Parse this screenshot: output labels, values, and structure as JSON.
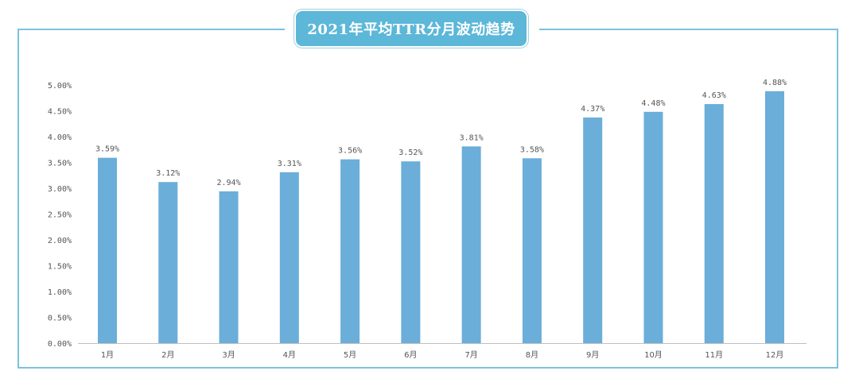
{
  "title": "2021年平均TTR分月波动趋势",
  "colors": {
    "bar": "#6aaed9",
    "frame": "#7cc2dc",
    "title_bg": "#5cb7d8",
    "axis": "#bfbfbf",
    "text": "#555555"
  },
  "chart_data": {
    "type": "bar",
    "title": "2021年平均TTR分月波动趋势",
    "xlabel": "",
    "ylabel": "",
    "categories": [
      "1月",
      "2月",
      "3月",
      "4月",
      "5月",
      "6月",
      "7月",
      "8月",
      "9月",
      "10月",
      "11月",
      "12月"
    ],
    "values": [
      3.59,
      3.12,
      2.94,
      3.31,
      3.56,
      3.52,
      3.81,
      3.58,
      4.37,
      4.48,
      4.63,
      4.88
    ],
    "value_labels": [
      "3.59%",
      "3.12%",
      "2.94%",
      "3.31%",
      "3.56%",
      "3.52%",
      "3.81%",
      "3.58%",
      "4.37%",
      "4.48%",
      "4.63%",
      "4.88%"
    ],
    "ylim": [
      0,
      5
    ],
    "yticks": [
      0,
      0.5,
      1,
      1.5,
      2,
      2.5,
      3,
      3.5,
      4,
      4.5,
      5
    ],
    "ytick_labels": [
      "0.00%",
      "0.50%",
      "1.00%",
      "1.50%",
      "2.00%",
      "2.50%",
      "3.00%",
      "3.50%",
      "4.00%",
      "4.50%",
      "5.00%"
    ],
    "grid": false,
    "legend": "none"
  }
}
